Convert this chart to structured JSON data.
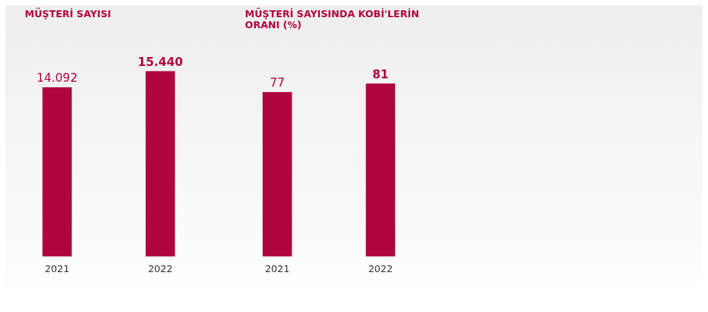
{
  "chart_data": [
    {
      "type": "bar",
      "title": "MÜŞTERİ SAYISI",
      "categories": [
        "2021",
        "2022"
      ],
      "values": [
        14092,
        15440
      ],
      "value_labels": [
        "14.092",
        "15.440"
      ],
      "color": "#b0063f"
    },
    {
      "type": "bar",
      "title": "MÜŞTERİ SAYISINDA KOBİ'LERİN ORANI (%)",
      "categories": [
        "2021",
        "2022"
      ],
      "values": [
        77,
        81
      ],
      "data_labels": true,
      "color": "#b0063f"
    }
  ]
}
